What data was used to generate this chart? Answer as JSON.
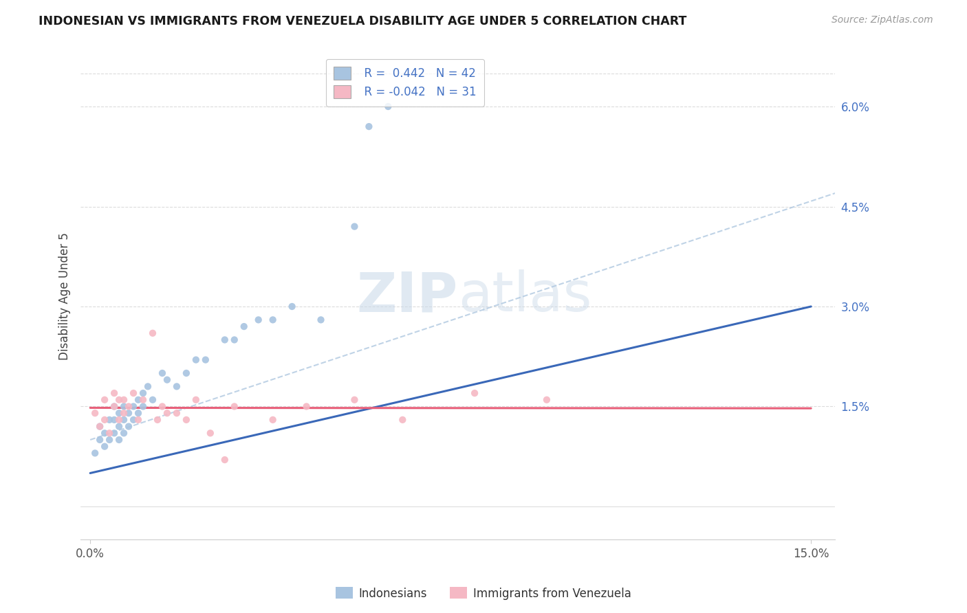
{
  "title": "INDONESIAN VS IMMIGRANTS FROM VENEZUELA DISABILITY AGE UNDER 5 CORRELATION CHART",
  "source": "Source: ZipAtlas.com",
  "ylabel": "Disability Age Under 5",
  "ytick_values": [
    0.015,
    0.03,
    0.045,
    0.06
  ],
  "xtick_values": [
    0.0,
    0.15
  ],
  "xtick_labels": [
    "0.0%",
    "15.0%"
  ],
  "xmin": -0.002,
  "xmax": 0.155,
  "ymin": -0.005,
  "ymax": 0.068,
  "legend_R_indo": "R =  0.442",
  "legend_N_indo": "N = 42",
  "legend_R_ven": "R = -0.042",
  "legend_N_ven": "N = 31",
  "legend_labels": [
    "Indonesians",
    "Immigrants from Venezuela"
  ],
  "indonesian_color": "#a8c4e0",
  "venezuela_color": "#f5b8c4",
  "indonesian_line_color": "#3a68b8",
  "venezuela_line_color": "#e8607a",
  "indonesian_dash_color": "#b0c8e0",
  "watermark_color": "#c8d8e8",
  "background_color": "#ffffff",
  "grid_color": "#cccccc",
  "indonesian_x": [
    0.001,
    0.002,
    0.002,
    0.003,
    0.003,
    0.004,
    0.004,
    0.005,
    0.005,
    0.005,
    0.006,
    0.006,
    0.006,
    0.007,
    0.007,
    0.007,
    0.008,
    0.008,
    0.009,
    0.009,
    0.01,
    0.01,
    0.011,
    0.011,
    0.012,
    0.013,
    0.015,
    0.016,
    0.018,
    0.02,
    0.022,
    0.024,
    0.028,
    0.03,
    0.032,
    0.035,
    0.038,
    0.042,
    0.048,
    0.055,
    0.058,
    0.062
  ],
  "indonesian_y": [
    0.008,
    0.01,
    0.012,
    0.009,
    0.011,
    0.01,
    0.013,
    0.011,
    0.013,
    0.015,
    0.01,
    0.012,
    0.014,
    0.011,
    0.013,
    0.015,
    0.012,
    0.014,
    0.013,
    0.015,
    0.014,
    0.016,
    0.015,
    0.017,
    0.018,
    0.016,
    0.02,
    0.019,
    0.018,
    0.02,
    0.022,
    0.022,
    0.025,
    0.025,
    0.027,
    0.028,
    0.028,
    0.03,
    0.028,
    0.042,
    0.057,
    0.06
  ],
  "venezuela_x": [
    0.001,
    0.002,
    0.003,
    0.003,
    0.004,
    0.005,
    0.005,
    0.006,
    0.006,
    0.007,
    0.007,
    0.008,
    0.009,
    0.01,
    0.011,
    0.013,
    0.014,
    0.015,
    0.016,
    0.018,
    0.02,
    0.022,
    0.025,
    0.028,
    0.03,
    0.038,
    0.045,
    0.055,
    0.065,
    0.08,
    0.095
  ],
  "venezuela_y": [
    0.014,
    0.012,
    0.013,
    0.016,
    0.011,
    0.015,
    0.017,
    0.013,
    0.016,
    0.014,
    0.016,
    0.015,
    0.017,
    0.013,
    0.016,
    0.026,
    0.013,
    0.015,
    0.014,
    0.014,
    0.013,
    0.016,
    0.011,
    0.007,
    0.015,
    0.013,
    0.015,
    0.016,
    0.013,
    0.017,
    0.016
  ]
}
